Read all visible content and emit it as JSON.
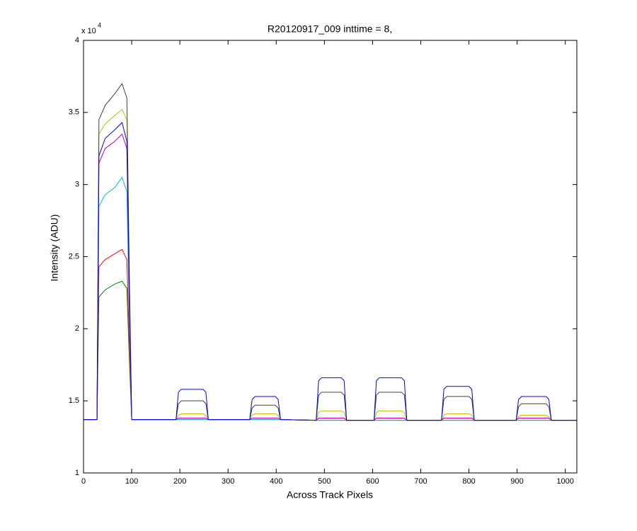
{
  "chart_data": {
    "type": "line",
    "title": "R20120917_009 inttime = 8,",
    "x_label": "Across Track Pixels",
    "y_label": "Intensity (ADU)",
    "y_multiplier_base": "x 10",
    "y_multiplier_exp": "4",
    "xlim": [
      0,
      1024
    ],
    "xticks": [
      0,
      100,
      200,
      300,
      400,
      500,
      600,
      700,
      800,
      900,
      1000
    ],
    "ylim": [
      1,
      4
    ],
    "yticks": [
      1,
      1.5,
      2,
      2.5,
      3,
      3.5,
      4
    ],
    "grid": false,
    "x": [
      0,
      28,
      32,
      45,
      65,
      80,
      90,
      95,
      100,
      192,
      197,
      203,
      248,
      254,
      259,
      345,
      350,
      356,
      398,
      404,
      409,
      483,
      488,
      494,
      535,
      541,
      546,
      603,
      608,
      614,
      660,
      666,
      671,
      743,
      748,
      754,
      800,
      806,
      811,
      898,
      903,
      909,
      960,
      966,
      971,
      1024
    ],
    "series": [
      {
        "color": "#007f00",
        "values": [
          1.37,
          1.37,
          2.22,
          2.27,
          2.31,
          2.33,
          2.28,
          1.8,
          1.37,
          1.37,
          1.37,
          1.37,
          1.37,
          1.37,
          1.37,
          1.37,
          1.37,
          1.37,
          1.37,
          1.37,
          1.37,
          1.365,
          1.365,
          1.365,
          1.365,
          1.365,
          1.365,
          1.365,
          1.365,
          1.365,
          1.365,
          1.365,
          1.365,
          1.365,
          1.365,
          1.365,
          1.365,
          1.365,
          1.365,
          1.365,
          1.365,
          1.365,
          1.365,
          1.365,
          1.365,
          1.365
        ]
      },
      {
        "color": "#ff0000",
        "values": [
          1.37,
          1.37,
          2.43,
          2.48,
          2.52,
          2.55,
          2.48,
          1.9,
          1.37,
          1.37,
          1.38,
          1.38,
          1.38,
          1.38,
          1.37,
          1.37,
          1.38,
          1.38,
          1.38,
          1.38,
          1.37,
          1.365,
          1.38,
          1.38,
          1.38,
          1.38,
          1.365,
          1.365,
          1.38,
          1.38,
          1.38,
          1.38,
          1.365,
          1.365,
          1.38,
          1.38,
          1.38,
          1.38,
          1.365,
          1.365,
          1.38,
          1.38,
          1.38,
          1.38,
          1.365,
          1.365
        ]
      },
      {
        "color": "#00bfbf",
        "values": [
          1.37,
          1.37,
          2.85,
          2.93,
          2.98,
          3.05,
          2.95,
          2.1,
          1.37,
          1.37,
          1.37,
          1.37,
          1.37,
          1.37,
          1.37,
          1.37,
          1.37,
          1.37,
          1.37,
          1.37,
          1.37,
          1.365,
          1.365,
          1.365,
          1.365,
          1.365,
          1.365,
          1.365,
          1.365,
          1.365,
          1.365,
          1.365,
          1.365,
          1.365,
          1.365,
          1.365,
          1.365,
          1.365,
          1.365,
          1.365,
          1.365,
          1.365,
          1.365,
          1.365,
          1.365,
          1.365
        ]
      },
      {
        "color": "#bf00bf",
        "values": [
          1.37,
          1.37,
          3.15,
          3.25,
          3.3,
          3.35,
          3.25,
          2.2,
          1.37,
          1.37,
          1.38,
          1.38,
          1.38,
          1.38,
          1.37,
          1.37,
          1.38,
          1.38,
          1.38,
          1.38,
          1.37,
          1.365,
          1.38,
          1.38,
          1.38,
          1.38,
          1.365,
          1.365,
          1.38,
          1.38,
          1.38,
          1.38,
          1.365,
          1.365,
          1.38,
          1.38,
          1.38,
          1.38,
          1.365,
          1.365,
          1.38,
          1.38,
          1.38,
          1.38,
          1.365,
          1.365
        ]
      },
      {
        "color": "#bfbf00",
        "values": [
          1.37,
          1.37,
          3.35,
          3.42,
          3.48,
          3.52,
          3.45,
          2.3,
          1.37,
          1.37,
          1.4,
          1.41,
          1.41,
          1.4,
          1.37,
          1.37,
          1.4,
          1.41,
          1.41,
          1.4,
          1.37,
          1.365,
          1.42,
          1.43,
          1.43,
          1.42,
          1.365,
          1.365,
          1.42,
          1.43,
          1.43,
          1.42,
          1.365,
          1.365,
          1.4,
          1.41,
          1.41,
          1.4,
          1.365,
          1.365,
          1.39,
          1.4,
          1.4,
          1.39,
          1.365,
          1.365
        ]
      },
      {
        "color": "#404040",
        "values": [
          1.37,
          1.37,
          3.45,
          3.55,
          3.63,
          3.7,
          3.6,
          2.4,
          1.37,
          1.37,
          1.48,
          1.5,
          1.5,
          1.48,
          1.37,
          1.37,
          1.45,
          1.47,
          1.47,
          1.45,
          1.37,
          1.365,
          1.54,
          1.56,
          1.56,
          1.54,
          1.365,
          1.365,
          1.54,
          1.56,
          1.56,
          1.54,
          1.365,
          1.365,
          1.51,
          1.53,
          1.53,
          1.51,
          1.365,
          1.365,
          1.46,
          1.48,
          1.48,
          1.46,
          1.365,
          1.365
        ]
      },
      {
        "color": "#0000ff",
        "values": [
          1.37,
          1.37,
          3.2,
          3.32,
          3.38,
          3.43,
          3.3,
          2.3,
          1.37,
          1.37,
          1.56,
          1.58,
          1.58,
          1.56,
          1.37,
          1.37,
          1.51,
          1.53,
          1.53,
          1.51,
          1.37,
          1.365,
          1.64,
          1.66,
          1.66,
          1.64,
          1.365,
          1.365,
          1.64,
          1.66,
          1.66,
          1.64,
          1.365,
          1.365,
          1.58,
          1.6,
          1.6,
          1.58,
          1.365,
          1.365,
          1.51,
          1.53,
          1.53,
          1.51,
          1.365,
          1.365
        ]
      }
    ]
  }
}
